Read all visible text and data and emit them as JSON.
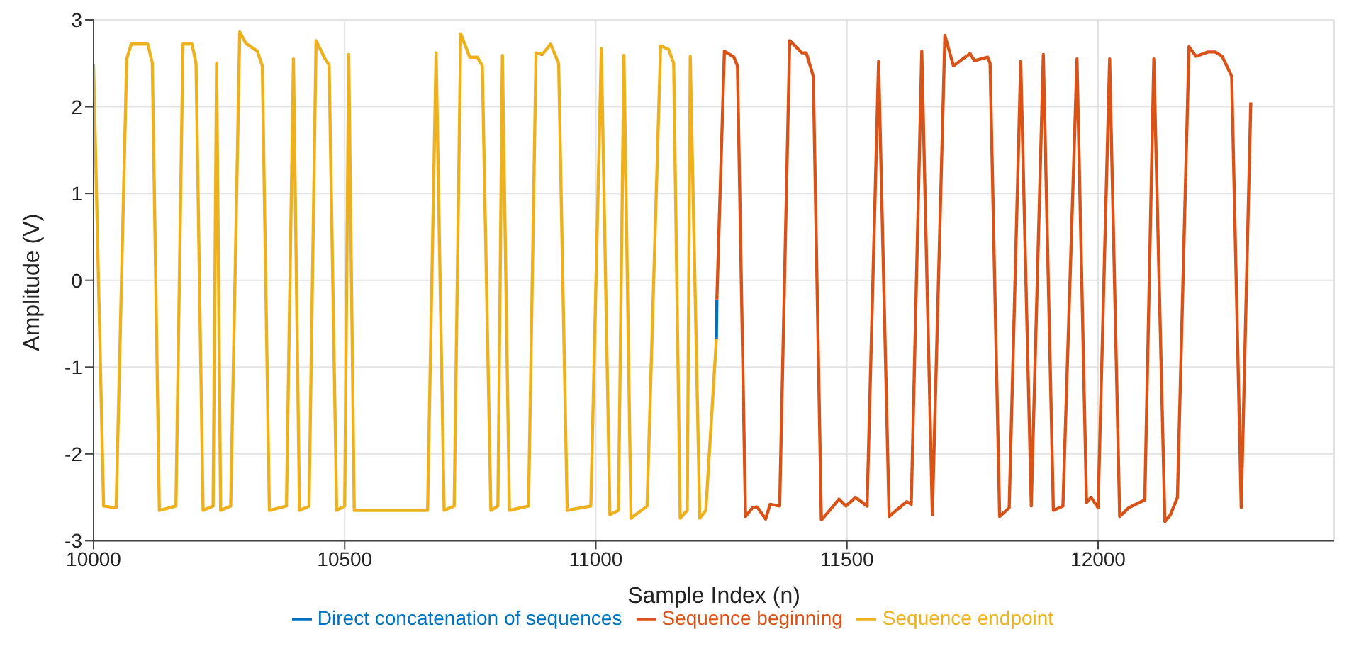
{
  "chart_data": {
    "type": "line",
    "xlabel": "Sample Index (n)",
    "ylabel": "Amplitude (V)",
    "xlim": [
      10000,
      12470
    ],
    "xticks": [
      10000,
      10500,
      11000,
      11500,
      12000
    ],
    "ylim": [
      -3,
      3
    ],
    "yticks": [
      -3,
      -2,
      -1,
      0,
      1,
      2,
      3
    ],
    "grid": true,
    "legend": "bottom",
    "marker": "none",
    "line_style": "solid",
    "series": [
      {
        "name": "Direct concatenation of sequences",
        "color": "#0072bd",
        "x": [
          11240,
          11241
        ],
        "values": [
          -0.68,
          -0.22
        ]
      },
      {
        "name": "Sequence beginning",
        "color": "#d95319",
        "x": [
          11241,
          11256,
          11275,
          11282,
          11298,
          11312,
          11321,
          11338,
          11347,
          11366,
          11386,
          11410,
          11419,
          11433,
          11449,
          11470,
          11484,
          11498,
          11517,
          11540,
          11563,
          11584,
          11600,
          11619,
          11628,
          11649,
          11670,
          11695,
          11712,
          11726,
          11745,
          11754,
          11780,
          11785,
          11804,
          11823,
          11846,
          11867,
          11891,
          11911,
          11930,
          11958,
          11977,
          11986,
          12000,
          12023,
          12043,
          12061,
          12082,
          12093,
          12111,
          12133,
          12144,
          12158,
          12181,
          12195,
          12219,
          12233,
          12247,
          12266,
          12285,
          12304
        ],
        "values": [
          -0.22,
          2.64,
          2.57,
          2.47,
          -2.72,
          -2.62,
          -2.61,
          -2.75,
          -2.58,
          -2.6,
          2.76,
          2.62,
          2.62,
          2.35,
          -2.76,
          -2.62,
          -2.52,
          -2.6,
          -2.5,
          -2.6,
          2.52,
          -2.72,
          -2.64,
          -2.55,
          -2.58,
          2.64,
          -2.7,
          2.82,
          2.47,
          2.53,
          2.61,
          2.53,
          2.57,
          2.5,
          -2.72,
          -2.62,
          2.52,
          -2.6,
          2.6,
          -2.65,
          -2.6,
          2.55,
          -2.56,
          -2.5,
          -2.62,
          2.55,
          -2.72,
          -2.62,
          -2.56,
          -2.53,
          2.55,
          -2.78,
          -2.7,
          -2.5,
          2.69,
          2.58,
          2.63,
          2.63,
          2.58,
          2.35,
          -2.62,
          2.05
        ]
      },
      {
        "name": "Sequence endpoint",
        "color": "#edb120",
        "x": [
          10000,
          10020,
          10045,
          10066,
          10075,
          10108,
          10117,
          10131,
          10164,
          10178,
          10196,
          10204,
          10218,
          10238,
          10245,
          10253,
          10273,
          10291,
          10303,
          10326,
          10336,
          10350,
          10384,
          10398,
          10410,
          10429,
          10443,
          10461,
          10469,
          10484,
          10500,
          10508,
          10519,
          10531,
          10665,
          10682,
          10698,
          10718,
          10731,
          10749,
          10764,
          10774,
          10791,
          10805,
          10814,
          10828,
          10866,
          10881,
          10893,
          10910,
          10926,
          10943,
          10990,
          11011,
          11028,
          11045,
          11056,
          11070,
          11102,
          11129,
          11145,
          11155,
          11168,
          11182,
          11188,
          11207,
          11219,
          11240
        ],
        "values": [
          2.49,
          -2.6,
          -2.62,
          2.55,
          2.72,
          2.72,
          2.5,
          -2.65,
          -2.6,
          2.72,
          2.72,
          2.5,
          -2.65,
          -2.6,
          2.5,
          -2.65,
          -2.6,
          2.86,
          2.73,
          2.64,
          2.47,
          -2.65,
          -2.6,
          2.55,
          -2.65,
          -2.6,
          2.76,
          2.55,
          2.48,
          -2.65,
          -2.6,
          2.6,
          -2.65,
          -2.65,
          -2.65,
          2.62,
          -2.65,
          -2.6,
          2.84,
          2.57,
          2.57,
          2.47,
          -2.65,
          -2.6,
          2.59,
          -2.65,
          -2.6,
          2.62,
          2.6,
          2.72,
          2.5,
          -2.65,
          -2.6,
          2.67,
          -2.7,
          -2.65,
          2.59,
          -2.74,
          -2.6,
          2.7,
          2.66,
          2.5,
          -2.74,
          -2.65,
          2.58,
          -2.74,
          -2.65,
          -0.68
        ]
      }
    ]
  }
}
